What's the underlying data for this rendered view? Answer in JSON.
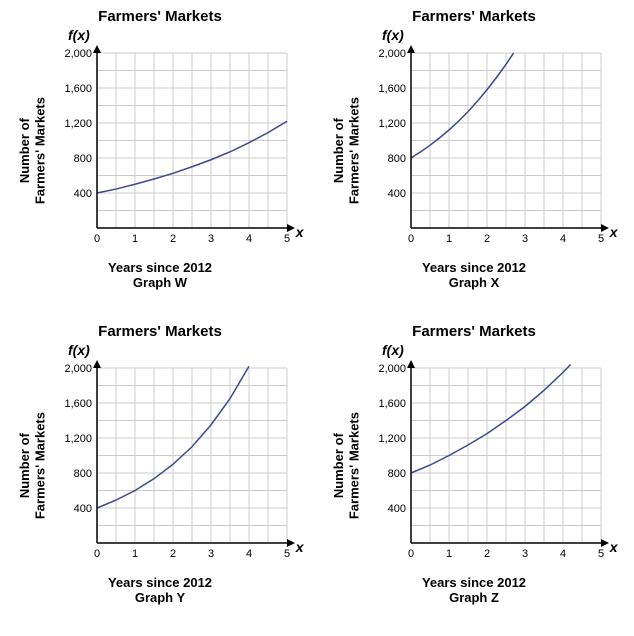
{
  "shared": {
    "title": "Farmers' Markets",
    "fx_label": "f(x)",
    "x_var": "x",
    "ylabel": "Number of\nFarmers' Markets",
    "xlabel": "Years since 2012",
    "xlim": [
      0,
      5
    ],
    "ylim": [
      0,
      2000
    ],
    "xtick_step": 1,
    "ytick_step": 400,
    "grid_color": "#cccccc",
    "axis_color": "#000000",
    "curve_color": "#3b4a8f",
    "background_color": "#ffffff",
    "title_fontsize": 15,
    "label_fontsize": 13,
    "tick_fontsize": 11,
    "curve_width": 1.5
  },
  "charts": [
    {
      "name": "Graph W",
      "type": "line",
      "data": [
        {
          "x": 0,
          "y": 400
        },
        {
          "x": 0.5,
          "y": 445
        },
        {
          "x": 1,
          "y": 500
        },
        {
          "x": 1.5,
          "y": 560
        },
        {
          "x": 2,
          "y": 625
        },
        {
          "x": 2.5,
          "y": 700
        },
        {
          "x": 3,
          "y": 780
        },
        {
          "x": 3.5,
          "y": 870
        },
        {
          "x": 4,
          "y": 975
        },
        {
          "x": 4.5,
          "y": 1090
        },
        {
          "x": 5,
          "y": 1220
        }
      ]
    },
    {
      "name": "Graph X",
      "type": "line",
      "data": [
        {
          "x": 0,
          "y": 800
        },
        {
          "x": 0.25,
          "y": 870
        },
        {
          "x": 0.5,
          "y": 945
        },
        {
          "x": 0.75,
          "y": 1030
        },
        {
          "x": 1,
          "y": 1120
        },
        {
          "x": 1.25,
          "y": 1220
        },
        {
          "x": 1.5,
          "y": 1330
        },
        {
          "x": 1.75,
          "y": 1450
        },
        {
          "x": 2,
          "y": 1580
        },
        {
          "x": 2.25,
          "y": 1720
        },
        {
          "x": 2.5,
          "y": 1870
        },
        {
          "x": 2.7,
          "y": 2000
        }
      ]
    },
    {
      "name": "Graph Y",
      "type": "line",
      "data": [
        {
          "x": 0,
          "y": 400
        },
        {
          "x": 0.5,
          "y": 490
        },
        {
          "x": 1,
          "y": 600
        },
        {
          "x": 1.5,
          "y": 735
        },
        {
          "x": 2,
          "y": 900
        },
        {
          "x": 2.5,
          "y": 1100
        },
        {
          "x": 3,
          "y": 1350
        },
        {
          "x": 3.5,
          "y": 1650
        },
        {
          "x": 4,
          "y": 2020
        }
      ]
    },
    {
      "name": "Graph Z",
      "type": "line",
      "data": [
        {
          "x": 0,
          "y": 800
        },
        {
          "x": 0.5,
          "y": 890
        },
        {
          "x": 1,
          "y": 1000
        },
        {
          "x": 1.5,
          "y": 1120
        },
        {
          "x": 2,
          "y": 1250
        },
        {
          "x": 2.5,
          "y": 1400
        },
        {
          "x": 3,
          "y": 1560
        },
        {
          "x": 3.5,
          "y": 1745
        },
        {
          "x": 4,
          "y": 1950
        },
        {
          "x": 4.2,
          "y": 2040
        }
      ]
    }
  ]
}
